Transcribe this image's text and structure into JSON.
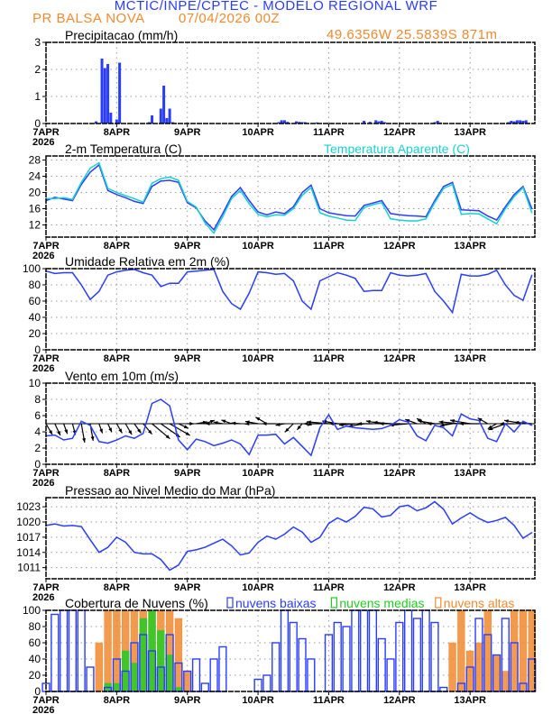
{
  "header": {
    "title": "MCTIC/INPE/CPTEC - MODELO REGIONAL WRF",
    "station": "PR BALSA NOVA",
    "run": "07/04/2026 00Z",
    "location": "49.6356W 25.5839S 871m"
  },
  "colors": {
    "title": "#2a3dff",
    "orange": "#f08a30",
    "blue": "#2a3dff",
    "cyan": "#19d0d0",
    "green": "#22cc22",
    "black": "#000000"
  },
  "x_axis": {
    "labels": [
      "7APR",
      "8APR",
      "9APR",
      "10APR",
      "11APR",
      "12APR",
      "13APR"
    ],
    "year": "2026",
    "unit": "hours since 07/04/2026 00Z",
    "range_hours": [
      0,
      166
    ]
  },
  "hours": [
    0,
    3,
    6,
    9,
    12,
    15,
    18,
    21,
    24,
    27,
    30,
    33,
    36,
    39,
    42,
    45,
    48,
    51,
    54,
    57,
    60,
    63,
    66,
    69,
    72,
    75,
    78,
    81,
    84,
    87,
    90,
    93,
    96,
    99,
    102,
    105,
    108,
    111,
    114,
    117,
    120,
    123,
    126,
    129,
    132,
    135,
    138,
    141,
    144,
    147,
    150,
    153,
    156,
    159,
    162,
    165
  ],
  "chart_data": [
    {
      "type": "bar",
      "title": "Precipitacao (mm/h)",
      "ylim": [
        0,
        3
      ],
      "yticks": [
        0,
        1,
        2,
        3
      ],
      "grid": true,
      "hourly_values": [
        [
          17,
          0.08
        ],
        [
          19,
          2.4
        ],
        [
          20,
          2.05
        ],
        [
          21,
          2.2
        ],
        [
          22,
          0.4
        ],
        [
          24,
          0.15
        ],
        [
          25,
          2.25
        ],
        [
          35,
          0.05
        ],
        [
          36,
          0.3
        ],
        [
          39,
          0.55
        ],
        [
          40,
          1.4
        ],
        [
          41,
          0.2
        ],
        [
          42,
          0.55
        ],
        [
          43,
          0.05
        ],
        [
          79,
          0.05
        ],
        [
          80,
          0.12
        ],
        [
          81,
          0.12
        ],
        [
          82,
          0.06
        ],
        [
          85,
          0.08
        ],
        [
          86,
          0.06
        ],
        [
          87,
          0.05
        ],
        [
          88,
          0.05
        ],
        [
          92,
          0.04
        ],
        [
          108,
          0.1
        ],
        [
          110,
          0.06
        ],
        [
          112,
          0.12
        ],
        [
          113,
          0.08
        ],
        [
          114,
          0.1
        ],
        [
          115,
          0.05
        ],
        [
          132,
          0.05
        ],
        [
          133,
          0.1
        ],
        [
          134,
          0.04
        ],
        [
          157,
          0.05
        ],
        [
          158,
          0.1
        ],
        [
          159,
          0.08
        ],
        [
          160,
          0.12
        ],
        [
          161,
          0.12
        ],
        [
          162,
          0.1
        ],
        [
          163,
          0.12
        ]
      ]
    },
    {
      "type": "line",
      "title": "2-m Temperatura (C)",
      "ylim": [
        9,
        29
      ],
      "yticks": [
        12,
        16,
        20,
        24,
        28
      ],
      "grid": true,
      "series": [
        {
          "name": "2-m Temperatura (C)",
          "color": "#2a3dff",
          "values": [
            18,
            18.8,
            18.4,
            18,
            22,
            25,
            26.8,
            20.5,
            19.5,
            18.7,
            17.8,
            17.3,
            21.5,
            22.8,
            23,
            22.5,
            17.5,
            16.2,
            13,
            10.8,
            14.8,
            19,
            21.2,
            18,
            15.2,
            14.5,
            15.2,
            14.8,
            16.5,
            20,
            21.8,
            16,
            15,
            14.6,
            14.3,
            14.2,
            16.8,
            17.4,
            18,
            14.8,
            14.5,
            14.3,
            14.2,
            14,
            18,
            21.5,
            22.5,
            15.7,
            15.6,
            15.5,
            14.2,
            13.2,
            16.5,
            19.5,
            21.5,
            16
          ]
        },
        {
          "name": "Temperatura Aparente (C)",
          "color": "#19d0d0",
          "values": [
            18.5,
            18.5,
            18.7,
            18.3,
            22.5,
            26,
            27.3,
            21,
            20,
            19.2,
            18.5,
            17.6,
            22.3,
            23.4,
            23.8,
            23,
            17.8,
            16.4,
            12.5,
            10,
            14,
            18.5,
            20.5,
            17.2,
            14.6,
            14,
            14.5,
            14.4,
            16,
            19.3,
            21.2,
            15,
            14.2,
            13.7,
            13.2,
            13.1,
            16.3,
            17,
            17.5,
            13.5,
            13.2,
            13,
            13,
            13.5,
            17.5,
            21,
            22,
            14.6,
            14.8,
            14.7,
            13.5,
            12.3,
            16,
            19,
            21.2,
            15
          ]
        }
      ]
    },
    {
      "type": "line",
      "title": "Umidade Relativa em 2m (%)",
      "ylim": [
        0,
        100
      ],
      "yticks": [
        0,
        20,
        40,
        60,
        80,
        100
      ],
      "grid": true,
      "series": [
        {
          "color": "#2a3dff",
          "values": [
            97,
            94,
            95,
            95,
            80,
            62,
            72,
            92,
            96,
            98,
            99,
            95,
            92,
            78,
            82,
            82,
            96,
            97,
            98,
            99,
            72,
            57,
            50,
            70,
            96,
            95,
            93,
            94,
            85,
            60,
            50,
            85,
            90,
            95,
            92,
            88,
            72,
            73,
            73,
            95,
            92,
            91,
            92,
            94,
            72,
            60,
            46,
            93,
            91,
            91,
            93,
            98,
            80,
            67,
            61,
            92
          ]
        }
      ]
    },
    {
      "type": "line",
      "title": "Vento em 10m (m/s)",
      "ylim": [
        0,
        10
      ],
      "yticks": [
        0,
        2,
        4,
        6,
        8,
        10
      ],
      "grid": true,
      "series": [
        {
          "color": "#2a3dff",
          "values": [
            3.5,
            3.6,
            3,
            3.2,
            5.3,
            4.8,
            2.8,
            2.6,
            3,
            3.5,
            3.2,
            3.8,
            7.5,
            8,
            7.2,
            3,
            1.8,
            3.1,
            2.8,
            2.3,
            2.6,
            3,
            2.5,
            1.2,
            3.6,
            3.6,
            3.7,
            2.5,
            3.3,
            2.2,
            1.1,
            4.5,
            6.1,
            4.3,
            4.7,
            4.5,
            4.4,
            4.3,
            4.4,
            4.8,
            5.5,
            5.2,
            3.5,
            2.9,
            4.8,
            4.5,
            3.5,
            6.2,
            5.6,
            5.4,
            3.2,
            2.8,
            5,
            4,
            5.3,
            4.8
          ]
        }
      ],
      "wind_direction_deg": [
        330,
        335,
        340,
        345,
        350,
        350,
        340,
        335,
        330,
        330,
        325,
        320,
        310,
        305,
        300,
        295,
        270,
        260,
        250,
        90,
        100,
        110,
        95,
        85,
        100,
        120,
        90,
        80,
        45,
        40,
        60,
        90,
        95,
        100,
        90,
        85,
        80,
        90,
        100,
        95,
        90,
        85,
        110,
        120,
        100,
        90,
        80,
        95,
        100,
        90,
        120,
        60,
        70,
        90,
        100,
        95
      ],
      "vector_baseline": 5
    },
    {
      "type": "line",
      "title": "Pressao ao Nivel Medio do Mar (hPa)",
      "ylim": [
        1008.8,
        1024.8
      ],
      "yticks": [
        1011,
        1014,
        1017,
        1020,
        1023
      ],
      "grid": true,
      "series": [
        {
          "color": "#2a3dff",
          "values": [
            1019.3,
            1019.6,
            1019.2,
            1019.3,
            1019.1,
            1016.5,
            1014,
            1015,
            1017,
            1016,
            1014,
            1013.7,
            1013.7,
            1012.6,
            1010.5,
            1011.5,
            1014.2,
            1014.5,
            1015,
            1015.8,
            1016.6,
            1015.3,
            1013.5,
            1013.9,
            1016,
            1017.2,
            1016.6,
            1017.6,
            1019,
            1018,
            1016,
            1017,
            1019.7,
            1020.8,
            1020,
            1021.1,
            1022.9,
            1022.6,
            1021,
            1021.3,
            1023,
            1023.3,
            1022.2,
            1022.8,
            1024,
            1022.5,
            1019.6,
            1020.8,
            1021.8,
            1020.7,
            1019.9,
            1020.3,
            1020.9,
            1019.3,
            1016.8,
            1017.9
          ]
        }
      ]
    },
    {
      "type": "bar",
      "title": "Cobertura de Nuvens (%)",
      "ylim": [
        0,
        100
      ],
      "yticks": [
        0,
        20,
        40,
        60,
        80,
        100
      ],
      "grid": true,
      "legend_position": "top",
      "series": [
        {
          "name": "nuvens altas",
          "color": "#f08a30",
          "values": [
            0,
            0,
            0,
            0,
            0,
            0,
            60,
            100,
            100,
            100,
            100,
            100,
            100,
            100,
            100,
            90,
            25,
            0,
            0,
            0,
            0,
            0,
            0,
            0,
            0,
            0,
            0,
            0,
            0,
            0,
            0,
            0,
            0,
            0,
            0,
            0,
            0,
            0,
            0,
            0,
            0,
            0,
            0,
            0,
            0,
            0,
            60,
            100,
            50,
            60,
            100,
            45,
            25,
            100,
            100,
            100
          ]
        },
        {
          "name": "nuvens medias",
          "color": "#22cc22",
          "values": [
            0,
            0,
            0,
            0,
            0,
            0,
            0,
            10,
            10,
            50,
            35,
            90,
            100,
            75,
            45,
            5,
            0,
            0,
            0,
            0,
            0,
            0,
            0,
            0,
            0,
            0,
            0,
            0,
            0,
            0,
            0,
            0,
            0,
            0,
            0,
            0,
            0,
            0,
            0,
            0,
            0,
            0,
            0,
            0,
            0,
            0,
            0,
            0,
            0,
            0,
            0,
            0,
            0,
            0,
            0,
            0
          ]
        },
        {
          "name": "nuvens baixas",
          "color": "#2a3dff",
          "values": [
            10,
            95,
            100,
            100,
            100,
            30,
            0,
            5,
            40,
            25,
            60,
            70,
            50,
            30,
            70,
            35,
            25,
            40,
            10,
            40,
            55,
            0,
            0,
            0,
            15,
            20,
            60,
            100,
            85,
            65,
            40,
            0,
            70,
            85,
            80,
            100,
            100,
            100,
            65,
            40,
            85,
            100,
            90,
            100,
            85,
            5,
            0,
            10,
            30,
            90,
            70,
            45,
            90,
            60,
            10,
            40
          ]
        }
      ]
    }
  ]
}
